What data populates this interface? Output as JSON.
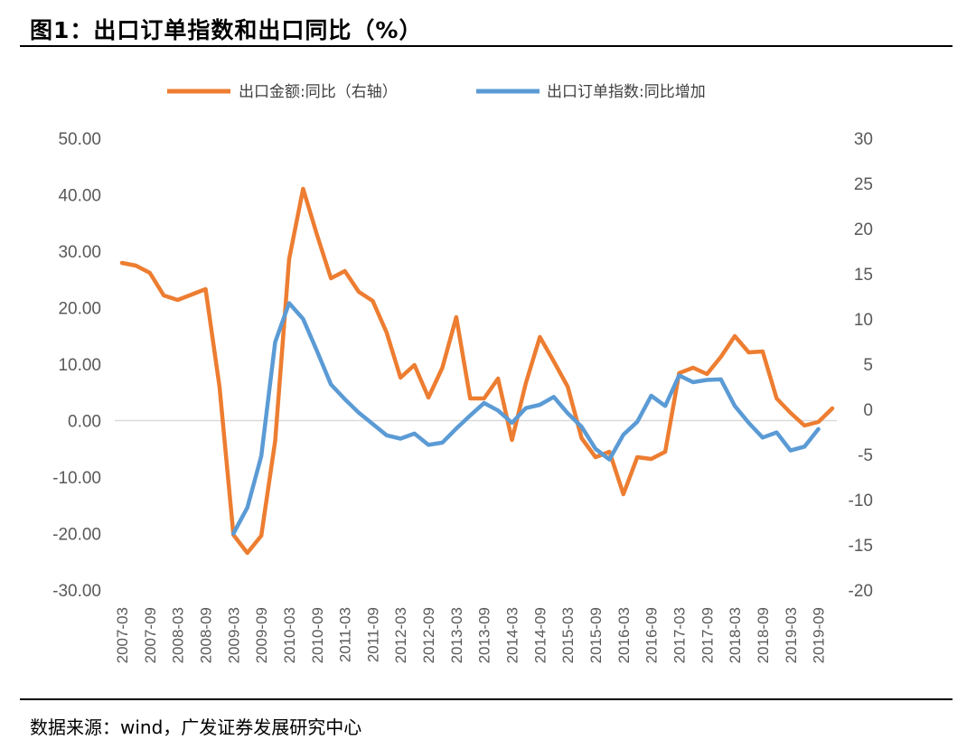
{
  "header": {
    "title": "图1：出口订单指数和出口同比（%）"
  },
  "footer": {
    "source": "数据来源：wind，广发证券发展研究中心"
  },
  "colors": {
    "orange": "#ED7D31",
    "blue": "#5B9BD5",
    "zero_line": "#D9D9D9",
    "rule": "#000000"
  },
  "chart_data": {
    "type": "line",
    "title": "图1：出口订单指数和出口同比（%）",
    "x_tick_labels": [
      "2007-03",
      "2007-09",
      "2008-03",
      "2008-09",
      "2009-03",
      "2009-09",
      "2010-03",
      "2010-09",
      "2011-03",
      "2011-09",
      "2012-03",
      "2012-09",
      "2013-03",
      "2013-09",
      "2014-03",
      "2014-09",
      "2015-03",
      "2015-09",
      "2016-03",
      "2016-09",
      "2017-03",
      "2017-09",
      "2018-03",
      "2018-09",
      "2019-03",
      "2019-09"
    ],
    "left_axis": {
      "min": -30,
      "max": 50,
      "step": 10,
      "tick_labels": [
        "50.00",
        "40.00",
        "30.00",
        "20.00",
        "10.00",
        "0.00",
        "-10.00",
        "-20.00",
        "-30.00"
      ]
    },
    "right_axis": {
      "min": -20,
      "max": 30,
      "step": 5,
      "tick_labels": [
        "30",
        "25",
        "20",
        "15",
        "10",
        "5",
        "0",
        "-5",
        "-10",
        "-15",
        "-20"
      ]
    },
    "series": [
      {
        "name": "出口金额:同比（右轴）",
        "axis": "right",
        "color": "#ED7D31",
        "values": [
          16.2,
          15.9,
          15.1,
          12.6,
          12.1,
          12.7,
          13.3,
          2.5,
          -13.9,
          -15.9,
          -14.0,
          -3.5,
          16.6,
          24.4,
          19.3,
          14.5,
          15.3,
          13.0,
          12.0,
          8.5,
          3.5,
          4.9,
          1.3,
          4.6,
          10.2,
          1.2,
          1.2,
          3.4,
          -3.4,
          2.9,
          8.0,
          5.3,
          2.5,
          -3.2,
          -5.3,
          -4.7,
          -9.4,
          -5.3,
          -5.5,
          -4.7,
          4.0,
          4.6,
          3.9,
          5.8,
          8.1,
          6.3,
          6.4,
          1.2,
          -0.4,
          -1.8,
          -1.4,
          0.1
        ]
      },
      {
        "name": "出口订单指数:同比增加",
        "axis": "left",
        "color": "#5B9BD5",
        "values": [
          null,
          null,
          null,
          null,
          null,
          null,
          null,
          null,
          -20.0,
          -15.4,
          -6.3,
          13.9,
          20.8,
          18.0,
          12.3,
          6.4,
          3.8,
          1.4,
          -0.6,
          -2.6,
          -3.2,
          -2.3,
          -4.3,
          -3.9,
          -1.4,
          0.9,
          3.1,
          1.8,
          -0.4,
          2.2,
          2.8,
          4.2,
          1.3,
          -1.1,
          -5.0,
          -6.9,
          -2.5,
          -0.2,
          4.4,
          2.6,
          8.0,
          6.8,
          7.2,
          7.3,
          2.6,
          -0.4,
          -3.0,
          -2.1,
          -5.3,
          -4.6,
          -1.5
        ]
      }
    ]
  }
}
